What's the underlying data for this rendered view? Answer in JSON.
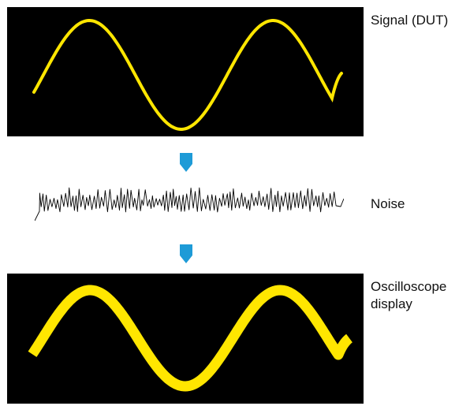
{
  "stages": [
    {
      "label": "Signal (DUT)"
    },
    {
      "label": "Noise"
    },
    {
      "label_line1": "Oscilloscope",
      "label_line2": "display"
    }
  ],
  "colors": {
    "waveform": "#FFE600",
    "panel_background": "#000000",
    "arrow": "#1E9BD7",
    "noise_trace": "#000000"
  },
  "icons": {
    "flow_arrow": "down-pointer-icon"
  }
}
